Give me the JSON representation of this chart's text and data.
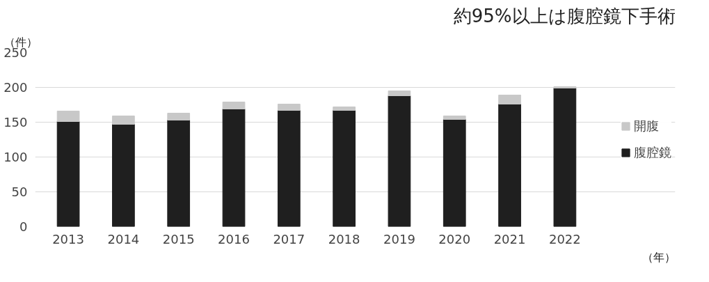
{
  "chart_data": {
    "type": "bar",
    "stacked": true,
    "title": "約95%以上は腹腔鏡下手術",
    "xlabel": "（年）",
    "ylabel": "（件）",
    "categories": [
      "2013",
      "2014",
      "2015",
      "2016",
      "2017",
      "2018",
      "2019",
      "2020",
      "2021",
      "2022"
    ],
    "series": [
      {
        "name": "腹腔鏡",
        "color": "#1f1f1f",
        "values": [
          151,
          147,
          153,
          169,
          167,
          167,
          188,
          154,
          176,
          199
        ]
      },
      {
        "name": "開腹",
        "color": "#c8c8c8",
        "values": [
          15,
          12,
          10,
          10,
          9,
          5,
          7,
          5,
          13,
          2
        ]
      }
    ],
    "ylim": [
      0,
      250
    ],
    "yticks": [
      0,
      50,
      100,
      150,
      200,
      250
    ],
    "grid": "y",
    "legend": "right"
  }
}
